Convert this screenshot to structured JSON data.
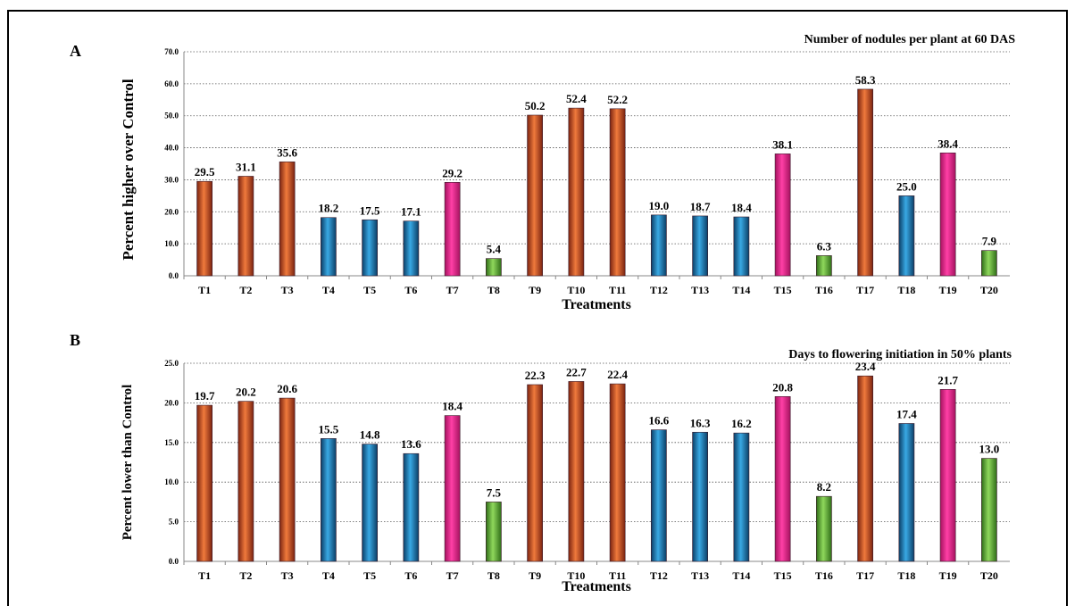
{
  "chart_data": [
    {
      "type": "bar",
      "panel_label": "A",
      "title": "Number of nodules per plant at 60 DAS",
      "xlabel": "Treatments",
      "ylabel": "Percent higher over Control",
      "ylim": [
        0,
        70
      ],
      "yticks": [
        "0.0",
        "10.0",
        "20.0",
        "30.0",
        "40.0",
        "50.0",
        "60.0",
        "70.0"
      ],
      "grid": "horizontal dotted",
      "categories": [
        "T1",
        "T2",
        "T3",
        "T4",
        "T5",
        "T6",
        "T7",
        "T8",
        "T9",
        "T10",
        "T11",
        "T12",
        "T13",
        "T14",
        "T15",
        "T16",
        "T17",
        "T18",
        "T19",
        "T20"
      ],
      "values": [
        29.5,
        31.1,
        35.6,
        18.2,
        17.5,
        17.1,
        29.2,
        5.4,
        50.2,
        52.4,
        52.2,
        19.0,
        18.7,
        18.4,
        38.1,
        6.3,
        58.3,
        25.0,
        38.4,
        7.9
      ],
      "value_labels": [
        "29.5",
        "31.1",
        "35.6",
        "18.2",
        "17.5",
        "17.1",
        "29.2",
        "5.4",
        "50.2",
        "52.4",
        "52.2",
        "19.0",
        "18.7",
        "18.4",
        "38.1",
        "6.3",
        "58.3",
        "25.0",
        "38.4",
        "7.9"
      ],
      "bar_groups": [
        "orange",
        "orange",
        "orange",
        "blue",
        "blue",
        "blue",
        "magenta",
        "green",
        "orange",
        "orange",
        "orange",
        "blue",
        "blue",
        "blue",
        "magenta",
        "green",
        "orange",
        "blue",
        "magenta",
        "green"
      ]
    },
    {
      "type": "bar",
      "panel_label": "B",
      "title": "Days to flowering initiation in 50% plants",
      "xlabel": "Treatments",
      "ylabel": "Percent lower than Control",
      "ylim": [
        0,
        25
      ],
      "yticks": [
        "0.0",
        "5.0",
        "10.0",
        "15.0",
        "20.0",
        "25.0"
      ],
      "grid": "horizontal dotted",
      "categories": [
        "T1",
        "T2",
        "T3",
        "T4",
        "T5",
        "T6",
        "T7",
        "T8",
        "T9",
        "T10",
        "T11",
        "T12",
        "T13",
        "T14",
        "T15",
        "T16",
        "T17",
        "T18",
        "T19",
        "T20"
      ],
      "values": [
        19.7,
        20.2,
        20.6,
        15.5,
        14.8,
        13.6,
        18.4,
        7.5,
        22.3,
        22.7,
        22.4,
        16.6,
        16.3,
        16.2,
        20.8,
        8.2,
        23.4,
        17.4,
        21.7,
        13.0
      ],
      "value_labels": [
        "19.7",
        "20.2",
        "20.6",
        "15.5",
        "14.8",
        "13.6",
        "18.4",
        "7.5",
        "22.3",
        "22.7",
        "22.4",
        "16.6",
        "16.3",
        "16.2",
        "20.8",
        "8.2",
        "23.4",
        "17.4",
        "21.7",
        "13.0"
      ],
      "bar_groups": [
        "orange",
        "orange",
        "orange",
        "blue",
        "blue",
        "blue",
        "magenta",
        "green",
        "orange",
        "orange",
        "orange",
        "blue",
        "blue",
        "blue",
        "magenta",
        "green",
        "orange",
        "blue",
        "magenta",
        "green"
      ]
    }
  ],
  "colors": {
    "orange": "#e0541f",
    "blue": "#1a8fd0",
    "magenta": "#e8238f",
    "green": "#5cb531",
    "grid": "#555555",
    "frame": "#000000"
  }
}
